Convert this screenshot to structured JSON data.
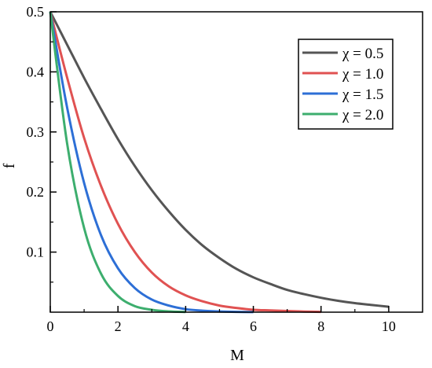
{
  "chart_data": {
    "type": "line",
    "title": "",
    "xlabel": "M",
    "ylabel": "f",
    "xlim": [
      0,
      11
    ],
    "ylim": [
      0,
      0.5
    ],
    "x_ticks": [
      0,
      2,
      4,
      6,
      8,
      10
    ],
    "x_tick_labels": [
      "0",
      "2",
      "4",
      "6",
      "8",
      "10"
    ],
    "y_ticks": [
      0.1,
      0.2,
      0.3,
      0.4,
      0.5
    ],
    "y_tick_labels": [
      "0.1",
      "0.2",
      "0.3",
      "0.4",
      "0.5"
    ],
    "grid": false,
    "legend_position": "top-right",
    "series": [
      {
        "name": "χ = 0.5",
        "color": "#555555",
        "x": [
          0,
          0.5,
          1,
          1.5,
          2,
          2.5,
          3,
          3.5,
          4,
          4.5,
          5,
          5.5,
          6,
          6.5,
          7,
          7.5,
          8,
          8.5,
          9,
          9.5,
          10
        ],
        "y": [
          0.5,
          0.445,
          0.39,
          0.338,
          0.288,
          0.243,
          0.203,
          0.168,
          0.137,
          0.111,
          0.09,
          0.072,
          0.058,
          0.047,
          0.037,
          0.03,
          0.024,
          0.019,
          0.015,
          0.012,
          0.009
        ]
      },
      {
        "name": "χ = 1.0",
        "color": "#e05252",
        "x": [
          0,
          0.5,
          1,
          1.5,
          2,
          2.5,
          3,
          3.5,
          4,
          4.5,
          5,
          5.5,
          6,
          6.5,
          7,
          7.5,
          8
        ],
        "y": [
          0.5,
          0.39,
          0.29,
          0.21,
          0.147,
          0.1,
          0.066,
          0.043,
          0.028,
          0.018,
          0.011,
          0.007,
          0.004,
          0.003,
          0.002,
          0.001,
          0.0005
        ]
      },
      {
        "name": "χ = 1.5",
        "color": "#2d6fd6",
        "x": [
          0,
          0.5,
          1,
          1.5,
          2,
          2.5,
          3,
          3.5,
          4,
          4.5,
          5,
          5.5,
          6
        ],
        "y": [
          0.5,
          0.34,
          0.215,
          0.128,
          0.073,
          0.04,
          0.021,
          0.011,
          0.005,
          0.0025,
          0.0012,
          0.0005,
          0.0002
        ]
      },
      {
        "name": "χ = 2.0",
        "color": "#3dae6e",
        "x": [
          0,
          0.5,
          1,
          1.5,
          2,
          2.5,
          3,
          3.5,
          4
        ],
        "y": [
          0.5,
          0.28,
          0.14,
          0.064,
          0.027,
          0.01,
          0.004,
          0.0013,
          0.0004
        ]
      }
    ]
  }
}
